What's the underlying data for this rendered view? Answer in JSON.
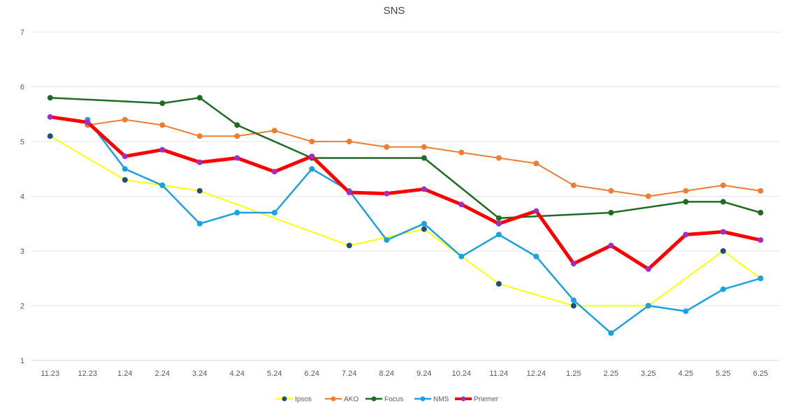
{
  "chart_data": {
    "type": "line",
    "title": "SNS",
    "xlabel": "",
    "ylabel": "",
    "ylim": [
      1,
      7
    ],
    "yticks": [
      1,
      2,
      3,
      4,
      5,
      6,
      7
    ],
    "grid": "horizontal",
    "legend_position": "bottom",
    "categories": [
      "11.23",
      "12.23",
      "1.24",
      "2.24",
      "3.24",
      "4.24",
      "5.24",
      "6.24",
      "7.24",
      "8.24",
      "9.24",
      "10.24",
      "11.24",
      "12.24",
      "1.25",
      "2.25",
      "3.25",
      "4.25",
      "5.25",
      "6.25"
    ],
    "series": [
      {
        "name": "Ipsos",
        "color": "#FFFF00",
        "marker_color": "#1F4E79",
        "line_width": 2,
        "values": [
          5.1,
          null,
          4.3,
          4.2,
          4.1,
          null,
          null,
          null,
          3.1,
          null,
          3.4,
          null,
          2.4,
          null,
          2.0,
          null,
          2.0,
          null,
          3.0,
          2.5
        ]
      },
      {
        "name": "AKO",
        "color": "#ED7D31",
        "marker_color": "#ED7D31",
        "line_width": 2,
        "values": [
          null,
          5.3,
          5.4,
          5.3,
          5.1,
          5.1,
          5.2,
          5.0,
          5.0,
          4.9,
          4.9,
          4.8,
          4.7,
          4.6,
          4.2,
          4.1,
          4.0,
          4.1,
          4.2,
          4.1
        ]
      },
      {
        "name": "Focus",
        "color": "#1E6B24",
        "marker_color": "#1E6B24",
        "line_width": 2.5,
        "values": [
          5.8,
          null,
          null,
          5.7,
          5.8,
          5.3,
          null,
          4.7,
          null,
          null,
          4.7,
          null,
          3.6,
          null,
          null,
          3.7,
          null,
          3.9,
          3.9,
          3.7
        ]
      },
      {
        "name": "NMS",
        "color": "#1BA1E2",
        "marker_color": "#1BA1E2",
        "line_width": 2.5,
        "values": [
          null,
          5.4,
          4.5,
          4.2,
          3.5,
          3.7,
          3.7,
          4.5,
          4.1,
          3.2,
          3.5,
          2.9,
          3.3,
          2.9,
          2.1,
          1.5,
          2.0,
          1.9,
          2.3,
          2.5
        ]
      },
      {
        "name": "Priemer",
        "color": "#FF0000",
        "marker_color": "#9B30C8",
        "line_width": 5,
        "values": [
          5.45,
          5.35,
          4.73,
          4.85,
          4.62,
          4.7,
          4.45,
          4.73,
          4.07,
          4.05,
          4.13,
          3.85,
          3.5,
          3.73,
          2.77,
          3.1,
          2.67,
          3.3,
          3.35,
          3.2
        ]
      }
    ]
  }
}
